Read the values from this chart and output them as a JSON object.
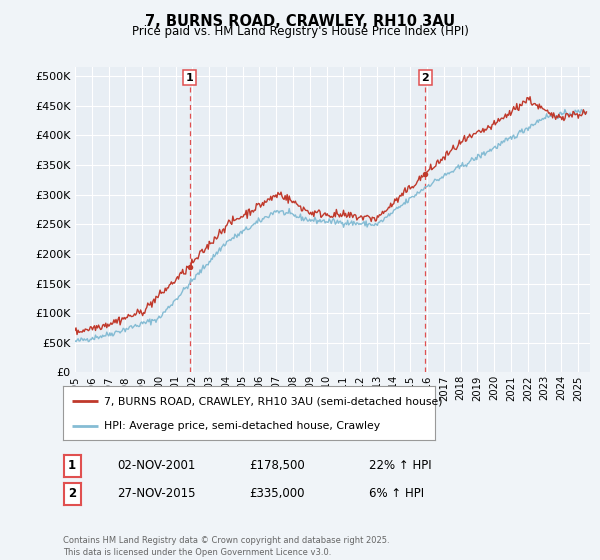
{
  "title": "7, BURNS ROAD, CRAWLEY, RH10 3AU",
  "subtitle": "Price paid vs. HM Land Registry's House Price Index (HPI)",
  "ytick_values": [
    0,
    50000,
    100000,
    150000,
    200000,
    250000,
    300000,
    350000,
    400000,
    450000,
    500000
  ],
  "ylim": [
    0,
    515000
  ],
  "xlim_start": 1995.0,
  "xlim_end": 2025.7,
  "x_tick_years": [
    1995,
    1996,
    1997,
    1998,
    1999,
    2000,
    2001,
    2002,
    2003,
    2004,
    2005,
    2006,
    2007,
    2008,
    2009,
    2010,
    2011,
    2012,
    2013,
    2014,
    2015,
    2016,
    2017,
    2018,
    2019,
    2020,
    2021,
    2022,
    2023,
    2024,
    2025
  ],
  "line_color_red": "#c0392b",
  "line_color_blue": "#85bcd4",
  "vline_color": "#e05050",
  "marker1_x": 2001.84,
  "marker1_y": 178500,
  "marker2_x": 2015.9,
  "marker2_y": 335000,
  "legend_entries": [
    "7, BURNS ROAD, CRAWLEY, RH10 3AU (semi-detached house)",
    "HPI: Average price, semi-detached house, Crawley"
  ],
  "annotation1_label": "1",
  "annotation1_date": "02-NOV-2001",
  "annotation1_price": "£178,500",
  "annotation1_hpi": "22% ↑ HPI",
  "annotation2_label": "2",
  "annotation2_date": "27-NOV-2015",
  "annotation2_price": "£335,000",
  "annotation2_hpi": "6% ↑ HPI",
  "footer": "Contains HM Land Registry data © Crown copyright and database right 2025.\nThis data is licensed under the Open Government Licence v3.0.",
  "background_color": "#f0f4f8",
  "plot_bg_color": "#e8eef4",
  "grid_color": "#ffffff"
}
